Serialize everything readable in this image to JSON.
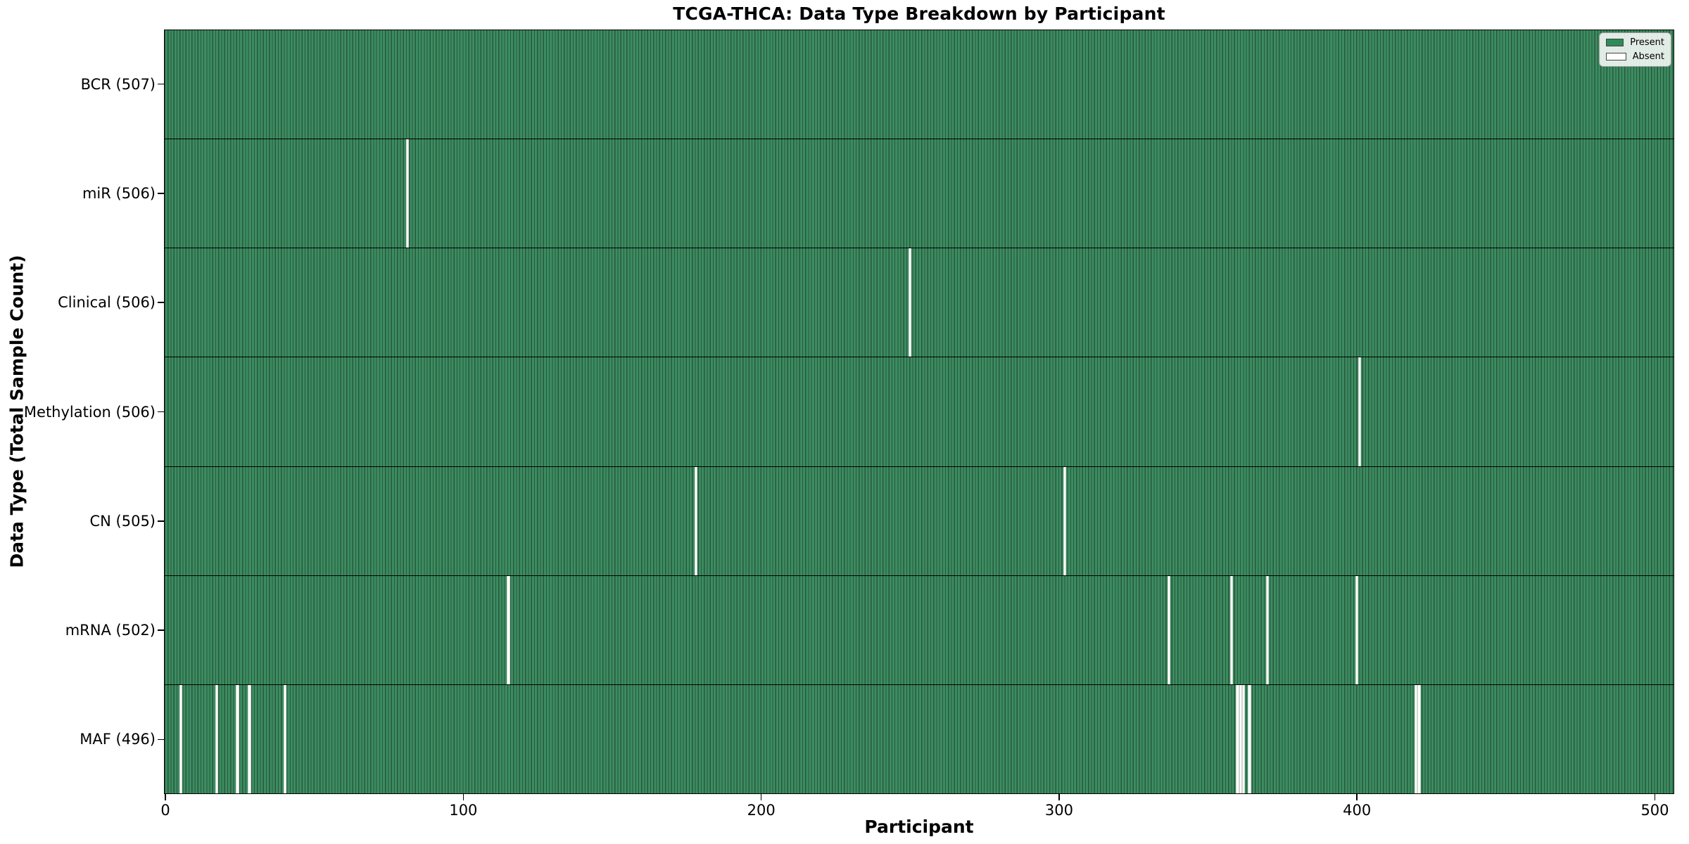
{
  "chart_data": {
    "type": "heatmap",
    "title": "TCGA-THCA: Data Type Breakdown by Participant",
    "xlabel": "Participant",
    "ylabel": "Data Type (Total Sample Count)",
    "n_participants": 507,
    "xlim": [
      -0.5,
      506.5
    ],
    "x_ticks": [
      0,
      100,
      200,
      300,
      400,
      500
    ],
    "grid": false,
    "legend_position": "upper right",
    "legend": [
      {
        "label": "Present",
        "color": "#2e8b57"
      },
      {
        "label": "Absent",
        "color": "#ffffff"
      }
    ],
    "colors": {
      "present_fill": "#3c8c61",
      "bar_edge": "#27593c",
      "absent_fill": "#ffffff",
      "border": "#000000"
    },
    "rows": [
      {
        "label": "BCR (507)",
        "present_count": 507,
        "absent_participants": []
      },
      {
        "label": "miR (506)",
        "present_count": 506,
        "absent_participants": [
          81
        ]
      },
      {
        "label": "Clinical (506)",
        "present_count": 506,
        "absent_participants": [
          250
        ]
      },
      {
        "label": "Methylation (506)",
        "present_count": 506,
        "absent_participants": [
          401
        ]
      },
      {
        "label": "CN (505)",
        "present_count": 505,
        "absent_participants": [
          178,
          302
        ]
      },
      {
        "label": "mRNA (502)",
        "present_count": 502,
        "absent_participants": [
          115,
          337,
          358,
          370,
          400
        ]
      },
      {
        "label": "MAF (496)",
        "present_count": 496,
        "absent_participants": [
          5,
          17,
          24,
          28,
          40,
          360,
          361,
          362,
          364,
          420,
          421
        ]
      }
    ]
  }
}
